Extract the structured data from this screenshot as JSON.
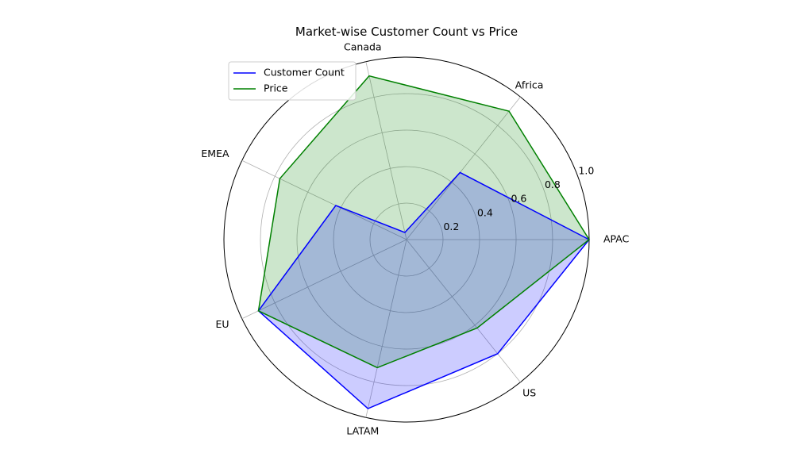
{
  "chart_data": {
    "type": "radar",
    "title": "Market-wise Customer Count vs Price",
    "categories": [
      "APAC",
      "Africa",
      "Canada",
      "EMEA",
      "EU",
      "LATAM",
      "US"
    ],
    "r_ticks": [
      "0.2",
      "0.4",
      "0.6",
      "0.8",
      "1.0"
    ],
    "r_tick_values": [
      0.2,
      0.4,
      0.6,
      0.8,
      1.0
    ],
    "rlim": [
      0,
      1.0
    ],
    "grid": true,
    "legend_position": "upper-left",
    "series": [
      {
        "name": "Customer Count",
        "color": "#0000ff",
        "fill": "#0000ff",
        "values": [
          1.0,
          0.47,
          0.04,
          0.43,
          0.9,
          0.95,
          0.8
        ]
      },
      {
        "name": "Price",
        "color": "#008000",
        "fill": "#008000",
        "values": [
          1.0,
          0.9,
          0.92,
          0.77,
          0.9,
          0.72,
          0.62
        ]
      }
    ]
  }
}
